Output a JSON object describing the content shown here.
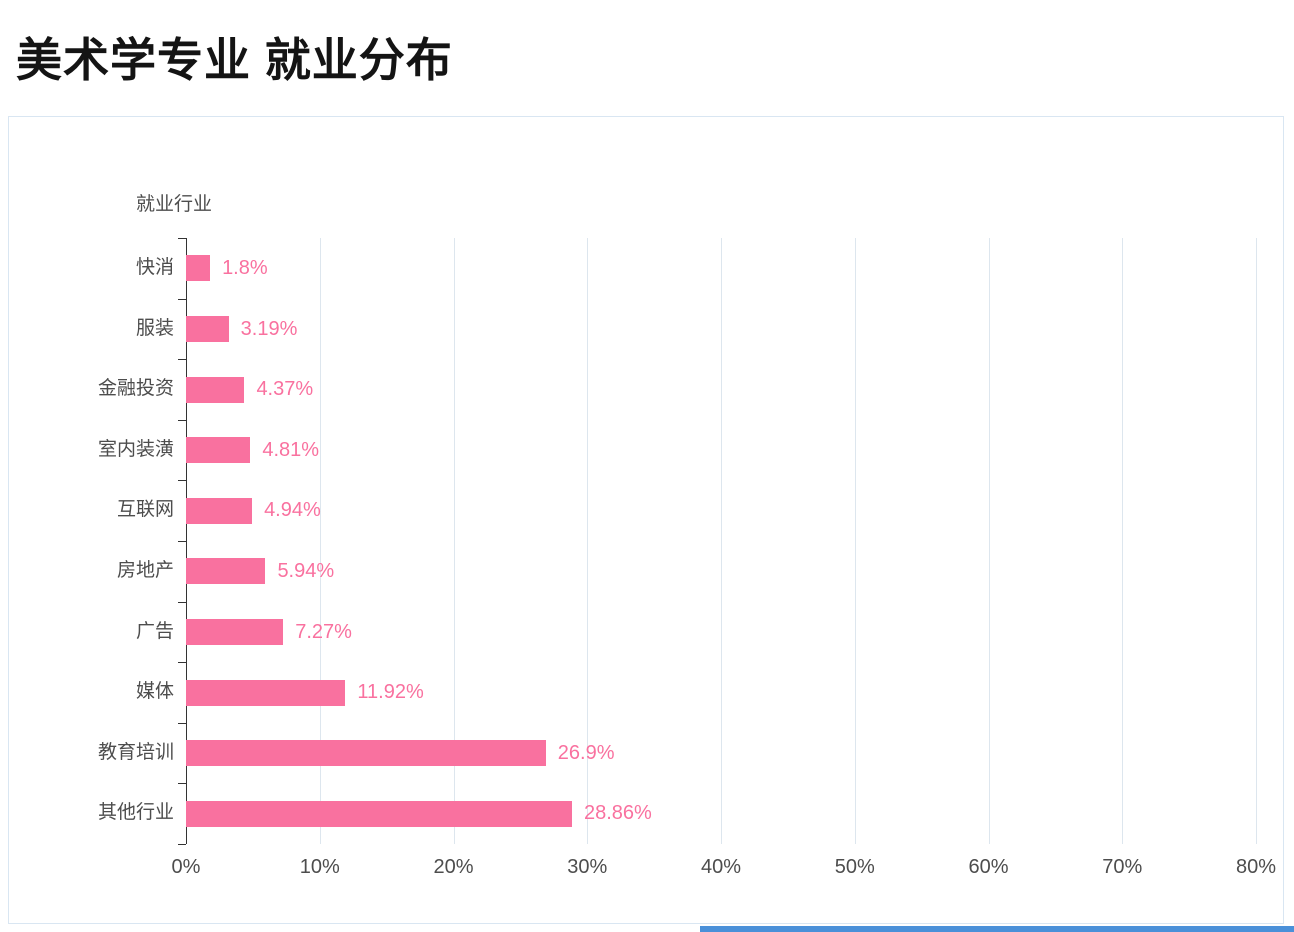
{
  "page": {
    "title": "美术学专业 就业分布"
  },
  "chart_data": {
    "type": "bar",
    "orientation": "horizontal",
    "title": "美术学专业 就业分布",
    "axis_title": "就业行业",
    "categories": [
      "快消",
      "服装",
      "金融投资",
      "室内装潢",
      "互联网",
      "房地产",
      "广告",
      "媒体",
      "教育培训",
      "其他行业"
    ],
    "values": [
      1.8,
      3.19,
      4.37,
      4.81,
      4.94,
      5.94,
      7.27,
      11.92,
      26.9,
      28.86
    ],
    "value_labels": [
      "1.8%",
      "3.19%",
      "4.37%",
      "4.81%",
      "4.94%",
      "5.94%",
      "7.27%",
      "11.92%",
      "26.9%",
      "28.86%"
    ],
    "x_ticks": [
      "0%",
      "10%",
      "20%",
      "30%",
      "40%",
      "50%",
      "60%",
      "70%",
      "80%"
    ],
    "xlim": [
      0,
      80
    ],
    "grid": true,
    "legend": false,
    "colors": {
      "bar": "#F9719F",
      "value_label": "#F9719F",
      "gridline": "#dde6ee",
      "axis_line": "#333333",
      "text": "#4d4d4d"
    }
  }
}
